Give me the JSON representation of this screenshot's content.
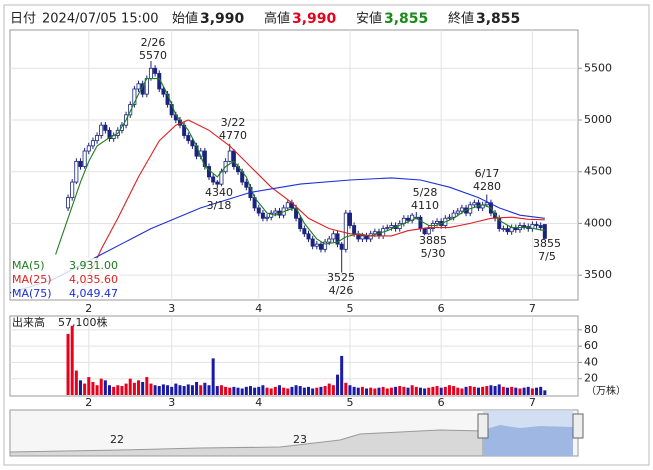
{
  "header": {
    "date_label": "日付",
    "datetime": "2024/07/05 15:00",
    "open_label": "始値",
    "open": "3,990",
    "high_label": "高値",
    "high": "3,990",
    "low_label": "安値",
    "low": "3,855",
    "close_label": "終値",
    "close": "3,855"
  },
  "chart_data": {
    "type": "candlestick",
    "candles": [
      [
        4150,
        4280,
        4120,
        4250
      ],
      [
        4250,
        4430,
        4220,
        4400
      ],
      [
        4400,
        4630,
        4380,
        4600
      ],
      [
        4600,
        4630,
        4520,
        4550
      ],
      [
        4550,
        4730,
        4530,
        4700
      ],
      [
        4700,
        4780,
        4670,
        4750
      ],
      [
        4750,
        4830,
        4720,
        4800
      ],
      [
        4800,
        4880,
        4770,
        4850
      ],
      [
        4850,
        4980,
        4820,
        4950
      ],
      [
        4950,
        4980,
        4870,
        4900
      ],
      [
        4900,
        4930,
        4790,
        4820
      ],
      [
        4820,
        4880,
        4790,
        4850
      ],
      [
        4850,
        4930,
        4820,
        4900
      ],
      [
        4900,
        4980,
        4870,
        4950
      ],
      [
        4950,
        5080,
        4920,
        5050
      ],
      [
        5050,
        5180,
        5020,
        5150
      ],
      [
        5150,
        5330,
        5120,
        5300
      ],
      [
        5300,
        5380,
        5270,
        5350
      ],
      [
        5350,
        5380,
        5220,
        5250
      ],
      [
        5250,
        5430,
        5220,
        5400
      ],
      [
        5400,
        5570,
        5380,
        5500
      ],
      [
        5500,
        5530,
        5420,
        5450
      ],
      [
        5450,
        5480,
        5270,
        5300
      ],
      [
        5300,
        5330,
        5220,
        5250
      ],
      [
        5250,
        5280,
        5120,
        5150
      ],
      [
        5150,
        5180,
        5020,
        5050
      ],
      [
        5050,
        5080,
        4970,
        5000
      ],
      [
        5000,
        5030,
        4920,
        4950
      ],
      [
        4950,
        4980,
        4820,
        4850
      ],
      [
        4850,
        4880,
        4770,
        4800
      ],
      [
        4800,
        4830,
        4720,
        4750
      ],
      [
        4750,
        4780,
        4620,
        4650
      ],
      [
        4650,
        4730,
        4620,
        4700
      ],
      [
        4700,
        4730,
        4520,
        4550
      ],
      [
        4550,
        4580,
        4420,
        4450
      ],
      [
        4450,
        4480,
        4370,
        4400
      ],
      [
        4400,
        4420,
        4340,
        4380
      ],
      [
        4380,
        4530,
        4360,
        4500
      ],
      [
        4500,
        4630,
        4480,
        4600
      ],
      [
        4600,
        4770,
        4590,
        4700
      ],
      [
        4700,
        4720,
        4520,
        4550
      ],
      [
        4550,
        4580,
        4470,
        4500
      ],
      [
        4500,
        4530,
        4370,
        4400
      ],
      [
        4400,
        4430,
        4320,
        4350
      ],
      [
        4350,
        4380,
        4220,
        4250
      ],
      [
        4250,
        4280,
        4120,
        4150
      ],
      [
        4150,
        4180,
        4070,
        4100
      ],
      [
        4100,
        4130,
        4020,
        4050
      ],
      [
        4050,
        4090,
        4020,
        4060
      ],
      [
        4060,
        4130,
        4030,
        4100
      ],
      [
        4100,
        4150,
        4070,
        4120
      ],
      [
        4120,
        4150,
        4050,
        4080
      ],
      [
        4080,
        4180,
        4050,
        4150
      ],
      [
        4150,
        4230,
        4120,
        4200
      ],
      [
        4200,
        4230,
        4120,
        4150
      ],
      [
        4150,
        4180,
        4020,
        4050
      ],
      [
        4050,
        4080,
        3920,
        3950
      ],
      [
        3950,
        3980,
        3870,
        3900
      ],
      [
        3900,
        3930,
        3820,
        3850
      ],
      [
        3850,
        3880,
        3750,
        3780
      ],
      [
        3780,
        3830,
        3750,
        3800
      ],
      [
        3800,
        3830,
        3720,
        3750
      ],
      [
        3750,
        3850,
        3720,
        3820
      ],
      [
        3820,
        3880,
        3790,
        3850
      ],
      [
        3850,
        3930,
        3820,
        3900
      ],
      [
        3900,
        3930,
        3770,
        3800
      ],
      [
        3800,
        3820,
        3525,
        3750
      ],
      [
        3750,
        4130,
        3720,
        4100
      ],
      [
        4100,
        4130,
        3950,
        3980
      ],
      [
        3980,
        4010,
        3870,
        3900
      ],
      [
        3900,
        3930,
        3820,
        3850
      ],
      [
        3850,
        3910,
        3820,
        3880
      ],
      [
        3880,
        3910,
        3820,
        3850
      ],
      [
        3850,
        3930,
        3820,
        3900
      ],
      [
        3900,
        3950,
        3870,
        3920
      ],
      [
        3920,
        3950,
        3850,
        3880
      ],
      [
        3880,
        3980,
        3850,
        3950
      ],
      [
        3950,
        3990,
        3930,
        3960
      ],
      [
        3960,
        4010,
        3930,
        3980
      ],
      [
        3980,
        4010,
        3920,
        3950
      ],
      [
        3950,
        4030,
        3920,
        4000
      ],
      [
        4000,
        4080,
        3970,
        4050
      ],
      [
        4050,
        4080,
        4000,
        4030
      ],
      [
        4030,
        4100,
        4000,
        4080
      ],
      [
        4050,
        4110,
        4040,
        4060
      ],
      [
        4060,
        4080,
        3920,
        3950
      ],
      [
        3950,
        3960,
        3885,
        3900
      ],
      [
        3900,
        3980,
        3890,
        3950
      ],
      [
        3950,
        4030,
        3920,
        4000
      ],
      [
        4000,
        4050,
        3970,
        4020
      ],
      [
        4020,
        4050,
        3950,
        3980
      ],
      [
        3980,
        4080,
        3950,
        4050
      ],
      [
        4050,
        4090,
        4030,
        4060
      ],
      [
        4060,
        4130,
        4030,
        4100
      ],
      [
        4100,
        4150,
        4070,
        4120
      ],
      [
        4120,
        4180,
        4090,
        4150
      ],
      [
        4150,
        4180,
        4070,
        4100
      ],
      [
        4100,
        4210,
        4070,
        4180
      ],
      [
        4180,
        4230,
        4150,
        4200
      ],
      [
        4200,
        4230,
        4120,
        4150
      ],
      [
        4150,
        4210,
        4120,
        4180
      ],
      [
        4180,
        4280,
        4170,
        4200
      ],
      [
        4200,
        4230,
        4070,
        4100
      ],
      [
        4100,
        4130,
        4020,
        4050
      ],
      [
        4050,
        4080,
        3920,
        3950
      ],
      [
        3950,
        3980,
        3920,
        3950
      ],
      [
        3950,
        3980,
        3890,
        3920
      ],
      [
        3920,
        3990,
        3890,
        3960
      ],
      [
        3960,
        3990,
        3910,
        3940
      ],
      [
        3940,
        4010,
        3910,
        3980
      ],
      [
        3980,
        4010,
        3940,
        3970
      ],
      [
        3970,
        4000,
        3920,
        3950
      ],
      [
        3950,
        4020,
        3920,
        3990
      ],
      [
        3990,
        4020,
        3950,
        3980
      ],
      [
        3980,
        4010,
        3930,
        3960
      ],
      [
        3990,
        3990,
        3855,
        3855
      ]
    ],
    "up_color": "#ffffff",
    "down_color": "#1a237e",
    "edge_color": "#1a237e",
    "xlim": [
      -14,
      123
    ],
    "xticks": [
      {
        "value": 5,
        "label": "2"
      },
      {
        "value": 25,
        "label": "3"
      },
      {
        "value": 46,
        "label": "4"
      },
      {
        "value": 68,
        "label": "5"
      },
      {
        "value": 90,
        "label": "6"
      },
      {
        "value": 112,
        "label": "7"
      }
    ],
    "ylim": [
      3260,
      5870
    ],
    "yticks": [
      3500,
      4000,
      4500,
      5000,
      5500
    ],
    "grid": true,
    "series": [
      {
        "name": "MA(5)",
        "color": "#1e7d1e",
        "last_label": "3,931.00",
        "x": [
          -3,
          0,
          3,
          5,
          7,
          10,
          12,
          14,
          17,
          19,
          22,
          24,
          26,
          29,
          31,
          33,
          36,
          38,
          40,
          43,
          45,
          48,
          50,
          53,
          55,
          57,
          60,
          62,
          65,
          67,
          70,
          73,
          77,
          81,
          84,
          87,
          89,
          93,
          96,
          100,
          102,
          104,
          107,
          111,
          115
        ],
        "values": [
          3700,
          4050,
          4400,
          4600,
          4750,
          4830,
          4870,
          5000,
          5250,
          5400,
          5400,
          5250,
          5050,
          4900,
          4750,
          4550,
          4450,
          4550,
          4600,
          4450,
          4250,
          4100,
          4080,
          4130,
          4150,
          4000,
          3850,
          3800,
          3820,
          3870,
          3900,
          3880,
          3930,
          4000,
          4050,
          3980,
          3980,
          4050,
          4130,
          4180,
          4150,
          4030,
          3960,
          3960,
          3931
        ]
      },
      {
        "name": "MA(25)",
        "color": "#e02020",
        "last_label": "4,035.60",
        "x": [
          4,
          8,
          12,
          17,
          22,
          26,
          29,
          34,
          39,
          44,
          49,
          54,
          58,
          63,
          68,
          73,
          78,
          82,
          87,
          92,
          97,
          102,
          107,
          111,
          115
        ],
        "values": [
          3400,
          3750,
          4050,
          4450,
          4800,
          4950,
          5000,
          4900,
          4750,
          4550,
          4350,
          4200,
          4050,
          3950,
          3900,
          3880,
          3880,
          3930,
          3960,
          3960,
          4000,
          4050,
          4060,
          4040,
          4035.6
        ]
      },
      {
        "name": "MA(75)",
        "color": "#1c2fd8",
        "last_label": "4,049.47",
        "x": [
          -14,
          -4,
          8,
          20,
          32,
          44,
          56,
          68,
          78,
          85,
          92,
          99,
          104,
          109,
          115
        ],
        "values": [
          3330,
          3450,
          3700,
          3950,
          4150,
          4300,
          4380,
          4420,
          4440,
          4420,
          4350,
          4250,
          4150,
          4080,
          4049.47
        ]
      }
    ],
    "annotations": [
      {
        "date": "2/26",
        "value": 5570
      },
      {
        "date": "3/22",
        "value": 4770
      },
      {
        "date": "3/18",
        "value": 4340
      },
      {
        "date": "4/26",
        "value": 3525
      },
      {
        "date": "5/28",
        "value": 4110
      },
      {
        "date": "5/30",
        "value": 3885
      },
      {
        "date": "6/17",
        "value": 4280
      },
      {
        "date": "7/5",
        "value": 3855
      }
    ],
    "volume": {
      "title": "出来高",
      "last_label": "57,100株",
      "unit": "（万株）",
      "ylim": [
        0,
        97
      ],
      "yticks": [
        20,
        40,
        60,
        80
      ],
      "up_color": "#e8001c",
      "down_color": "#1a1aa6",
      "values": [
        75,
        85,
        30,
        18,
        14,
        22,
        16,
        12,
        20,
        18,
        12,
        10,
        12,
        11,
        14,
        20,
        15,
        18,
        16,
        22,
        14,
        12,
        11,
        13,
        12,
        10,
        14,
        12,
        11,
        13,
        12,
        16,
        12,
        15,
        12,
        45,
        11,
        12,
        10,
        9,
        10,
        9,
        8,
        10,
        11,
        9,
        10,
        12,
        9,
        8,
        10,
        12,
        9,
        8,
        10,
        12,
        11,
        9,
        10,
        8,
        9,
        10,
        11,
        14,
        12,
        25,
        48,
        15,
        12,
        10,
        9,
        10,
        8,
        9,
        8,
        9,
        10,
        8,
        9,
        10,
        11,
        10,
        9,
        12,
        10,
        9,
        8,
        9,
        10,
        11,
        9,
        10,
        12,
        11,
        9,
        8,
        10,
        11,
        10,
        9,
        10,
        11,
        12,
        11,
        13,
        10,
        9,
        10,
        9,
        8,
        9,
        10,
        8,
        9,
        10,
        5.71
      ]
    },
    "navigator": {
      "labels": [
        "22",
        "23"
      ]
    }
  }
}
